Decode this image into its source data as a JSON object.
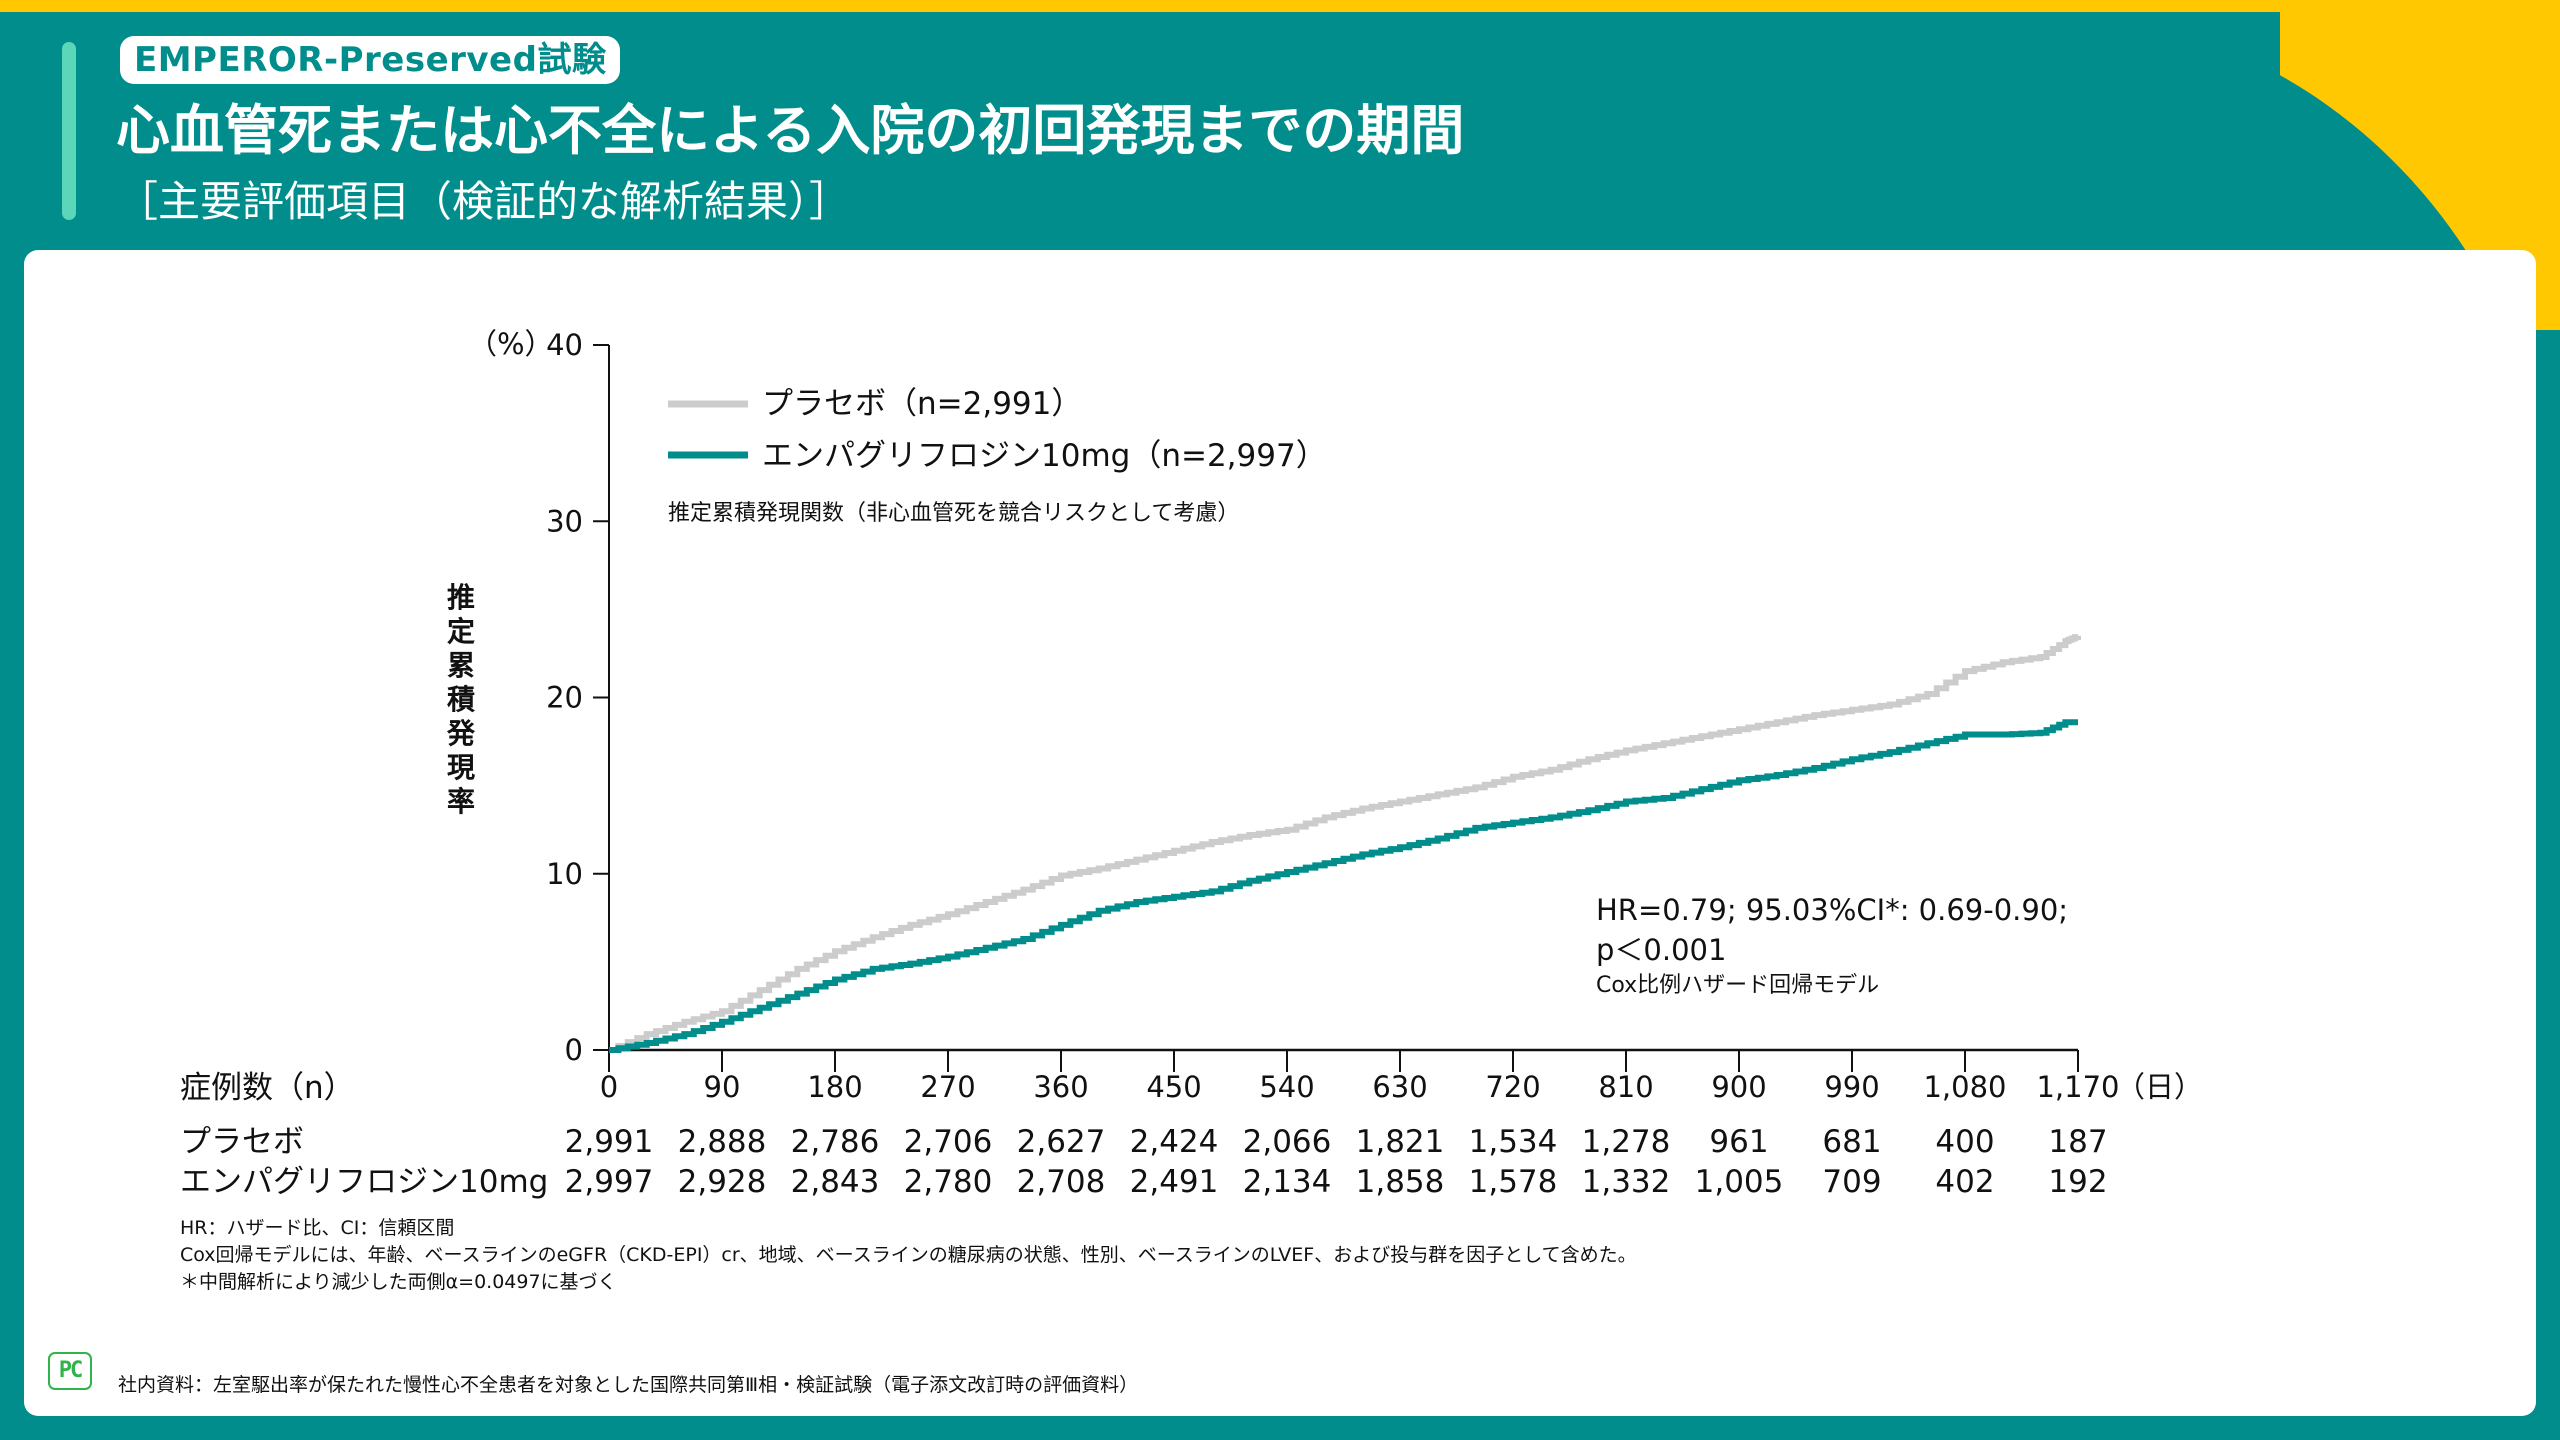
{
  "header": {
    "badge": "EMPEROR-Preserved試験",
    "title": "心血管死または心不全による入院の初回発現までの期間",
    "subtitle": "［主要評価項目（検証的な解析結果）］"
  },
  "colors": {
    "teal": "#008d8b",
    "yellow": "#ffc800",
    "accent": "#5cd6b8",
    "placebo_line": "#cccccc",
    "empa_line": "#008d8b"
  },
  "chart_data": {
    "type": "line",
    "title": "推定累積発現率",
    "xlabel": "（日）",
    "ylabel": "推定累積発現率",
    "yunit": "（%）",
    "xlim": [
      0,
      1170
    ],
    "ylim": [
      0,
      40
    ],
    "xticks": [
      0,
      90,
      180,
      270,
      360,
      450,
      540,
      630,
      720,
      810,
      900,
      990,
      1080,
      1170
    ],
    "xtick_labels": [
      "0",
      "90",
      "180",
      "270",
      "360",
      "450",
      "540",
      "630",
      "720",
      "810",
      "900",
      "990",
      "1,080",
      "1,170"
    ],
    "yticks": [
      0,
      10,
      20,
      30,
      40
    ],
    "ytick_labels": [
      "0",
      "10",
      "20",
      "30",
      "40"
    ],
    "grid": false,
    "legend_position": "top-left",
    "legend_note": "推定累積発現関数（非心血管死を競合リスクとして考慮）",
    "series": [
      {
        "name": "プラセボ（n=2,991）",
        "key": "placebo",
        "x": [
          0,
          30,
          60,
          90,
          120,
          150,
          180,
          210,
          240,
          270,
          300,
          330,
          360,
          390,
          420,
          450,
          480,
          510,
          540,
          570,
          600,
          630,
          660,
          690,
          720,
          750,
          780,
          810,
          840,
          870,
          900,
          930,
          960,
          990,
          1020,
          1050,
          1080,
          1110,
          1140,
          1160,
          1170
        ],
        "values": [
          0,
          0.9,
          1.6,
          2.2,
          3.4,
          4.6,
          5.6,
          6.4,
          7.1,
          7.7,
          8.4,
          9.1,
          9.9,
          10.3,
          10.8,
          11.3,
          11.8,
          12.2,
          12.5,
          13.2,
          13.7,
          14.1,
          14.5,
          14.9,
          15.5,
          15.9,
          16.5,
          17.0,
          17.4,
          17.8,
          18.2,
          18.6,
          19.0,
          19.3,
          19.6,
          20.2,
          21.5,
          22.0,
          22.3,
          23.2,
          23.5
        ]
      },
      {
        "name": "エンパグリフロジン10mg（n=2,997）",
        "key": "empagliflozin",
        "x": [
          0,
          30,
          60,
          90,
          120,
          150,
          180,
          210,
          240,
          270,
          300,
          330,
          360,
          390,
          420,
          450,
          480,
          510,
          540,
          570,
          600,
          630,
          660,
          690,
          720,
          750,
          780,
          810,
          840,
          870,
          900,
          930,
          960,
          990,
          1020,
          1050,
          1080,
          1110,
          1140,
          1160,
          1170
        ],
        "values": [
          0,
          0.4,
          0.9,
          1.6,
          2.4,
          3.2,
          4.0,
          4.6,
          4.9,
          5.3,
          5.8,
          6.3,
          7.1,
          7.9,
          8.4,
          8.7,
          9.0,
          9.6,
          10.1,
          10.6,
          11.1,
          11.5,
          12.0,
          12.6,
          12.9,
          13.2,
          13.6,
          14.1,
          14.3,
          14.8,
          15.3,
          15.6,
          16.0,
          16.5,
          16.9,
          17.4,
          17.9,
          17.9,
          18.0,
          18.6,
          18.6
        ]
      }
    ],
    "annotations": {
      "stat_line1": "HR=0.79; 95.03%CI*: 0.69-0.90;",
      "stat_line2": "p＜0.001",
      "stat_line3": "Cox比例ハザード回帰モデル"
    }
  },
  "risk_table": {
    "header": "症例数（n）",
    "rows": [
      {
        "label": "プラセボ",
        "values": [
          "2,991",
          "2,888",
          "2,786",
          "2,706",
          "2,627",
          "2,424",
          "2,066",
          "1,821",
          "1,534",
          "1,278",
          "961",
          "681",
          "400",
          "187"
        ]
      },
      {
        "label": "エンパグリフロジン10mg",
        "values": [
          "2,997",
          "2,928",
          "2,843",
          "2,780",
          "2,708",
          "2,491",
          "2,134",
          "1,858",
          "1,578",
          "1,332",
          "1,005",
          "709",
          "402",
          "192"
        ]
      }
    ]
  },
  "footnotes": [
    "HR：ハザード比、CI：信頼区間",
    "Cox回帰モデルには、年齢、ベースラインのeGFR（CKD-EPI）cr、地域、ベースラインの糖尿病の状態、性別、ベースラインのLVEF、および投与群を因子として含めた。",
    "＊中間解析により減少した両側α=0.0497に基づく"
  ],
  "footer": {
    "logo_text": "PC",
    "source": "社内資料：左室駆出率が保たれた慢性心不全患者を対象とした国際共同第Ⅲ相・検証試験（電子添文改訂時の評価資料）"
  }
}
